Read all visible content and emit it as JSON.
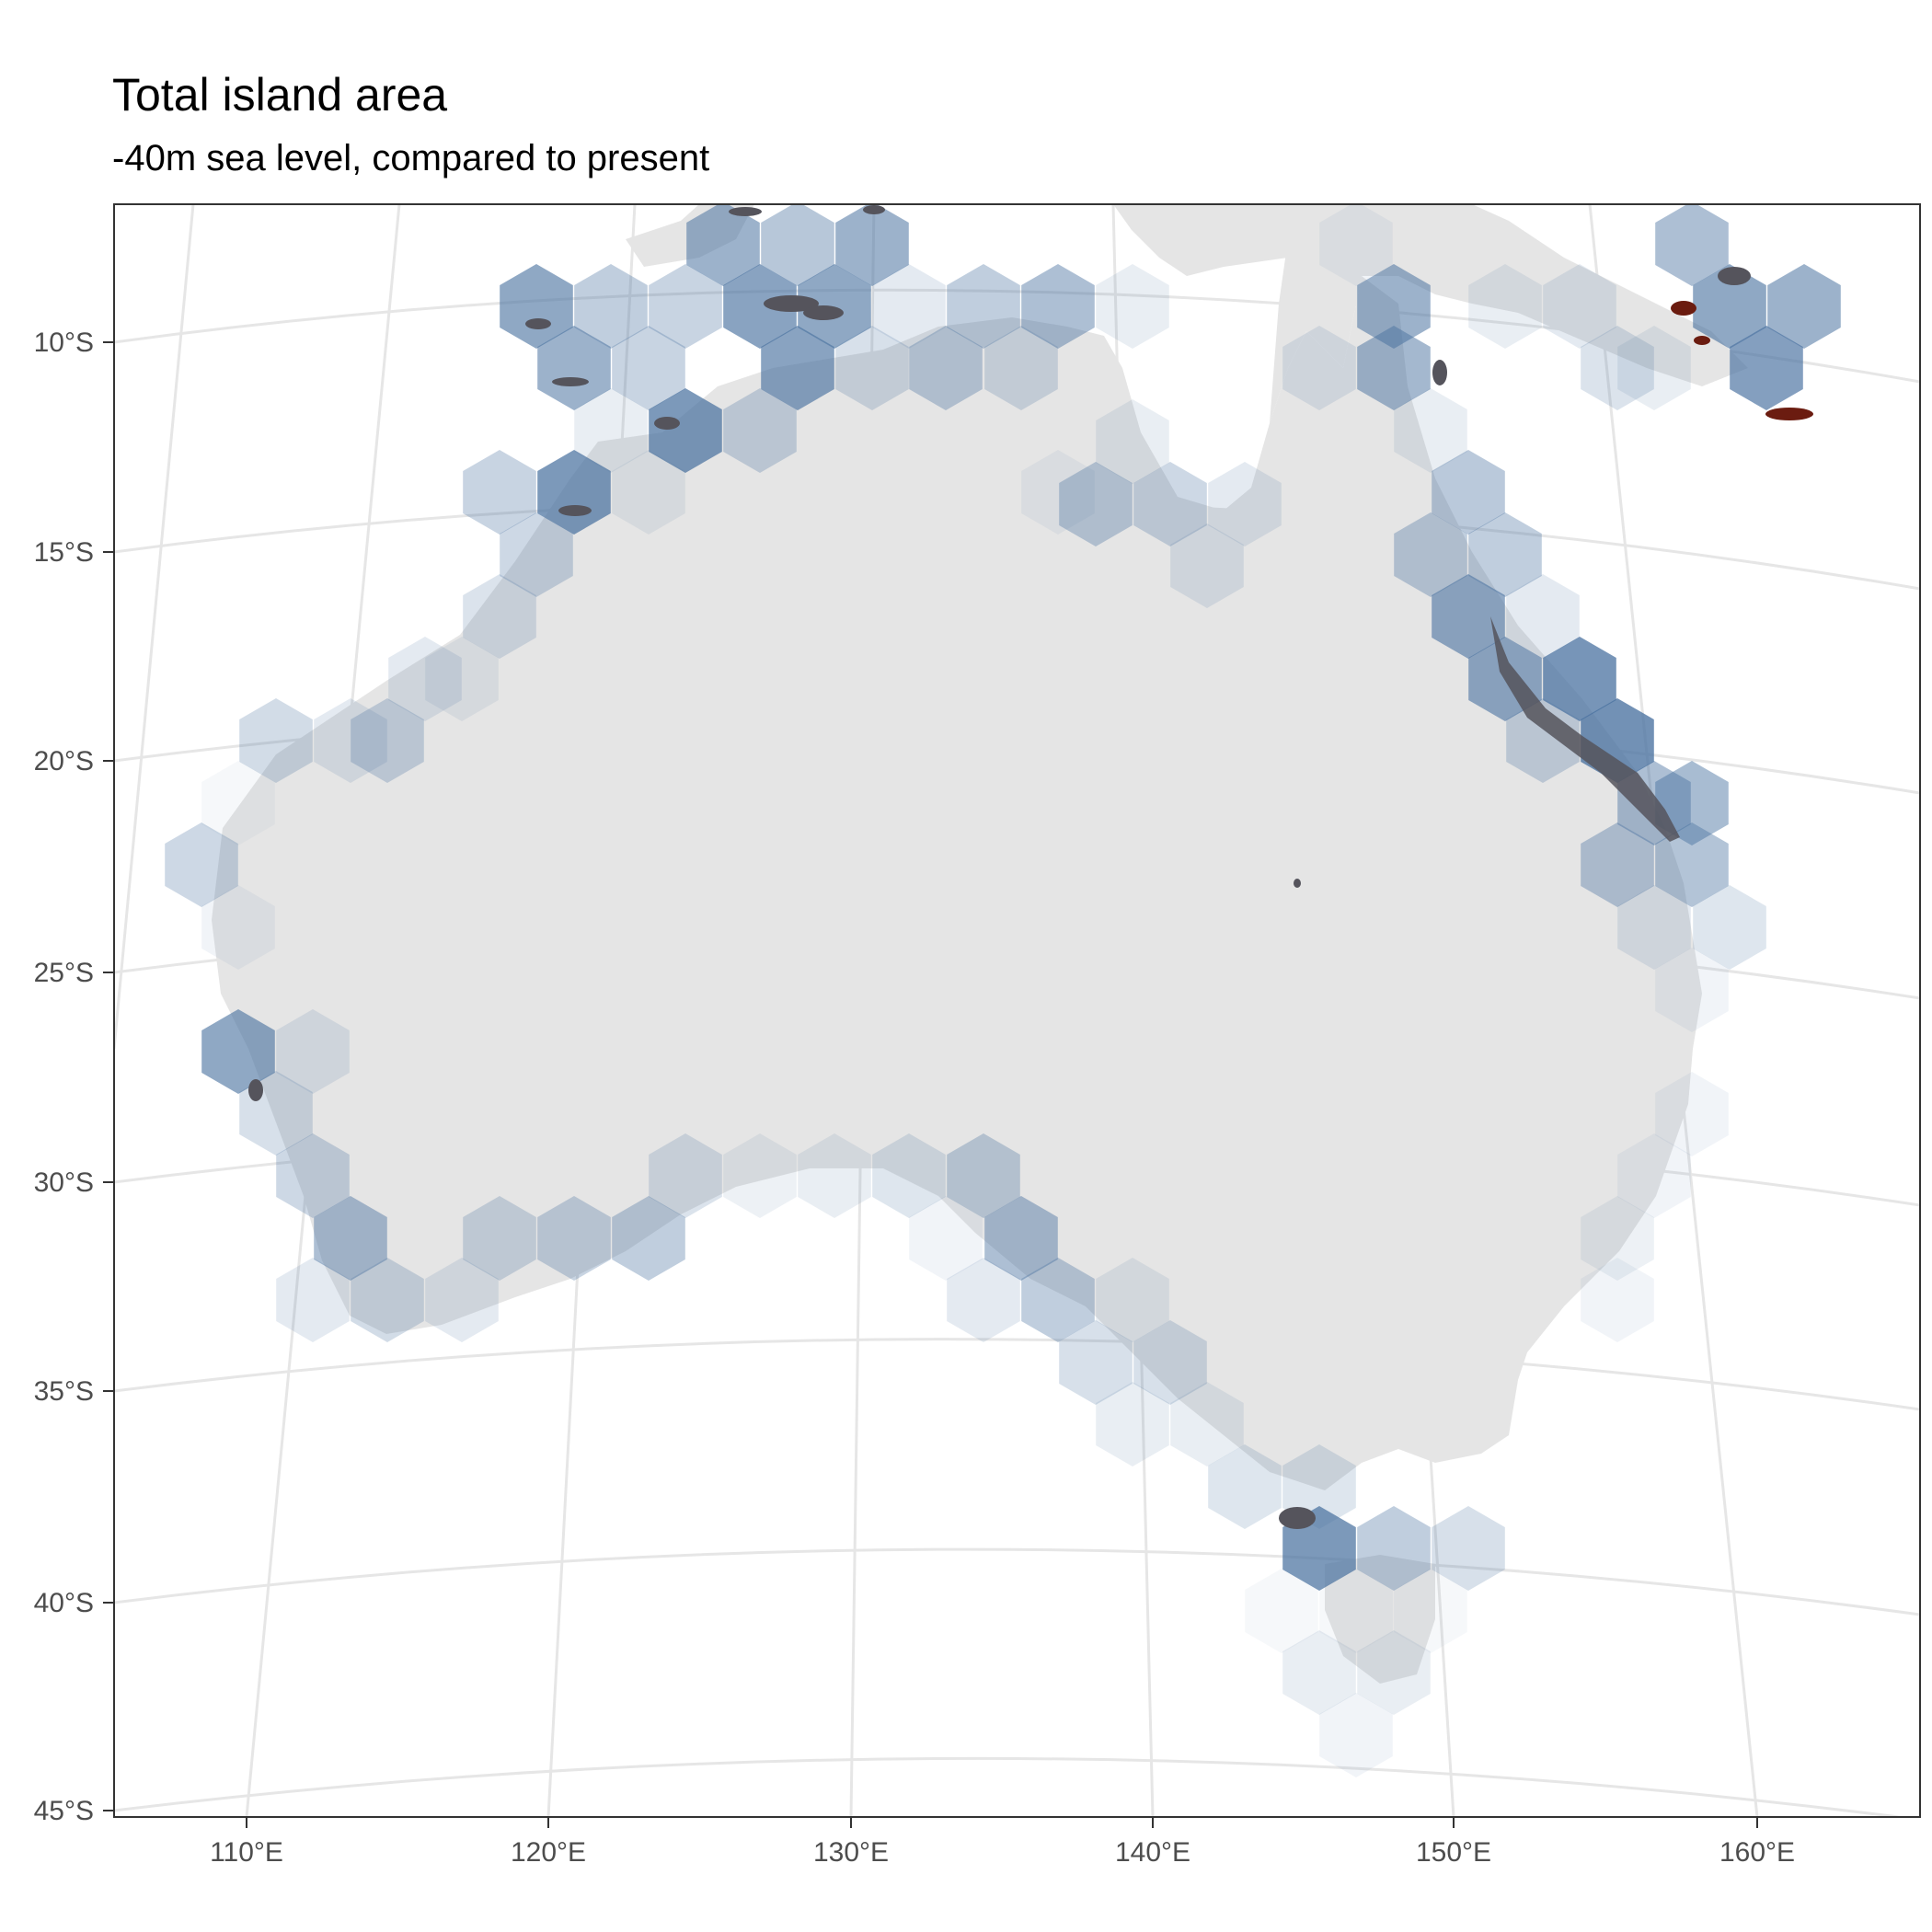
{
  "title": "Total island area",
  "subtitle": "-40m sea level, compared to present",
  "y_axis_ticks": [
    "10°S",
    "15°S",
    "20°S",
    "25°S",
    "30°S",
    "35°S",
    "40°S",
    "45°S"
  ],
  "x_axis_ticks": [
    "110°E",
    "120°E",
    "130°E",
    "140°E",
    "150°E",
    "160°E"
  ],
  "colors": {
    "land": "#e5e5e5",
    "hex_fill": "#4a72a0",
    "island": "#55545c",
    "island_highlight": "#6b1c10",
    "graticule": "#e6e6e6",
    "panel_border": "#333333"
  }
}
